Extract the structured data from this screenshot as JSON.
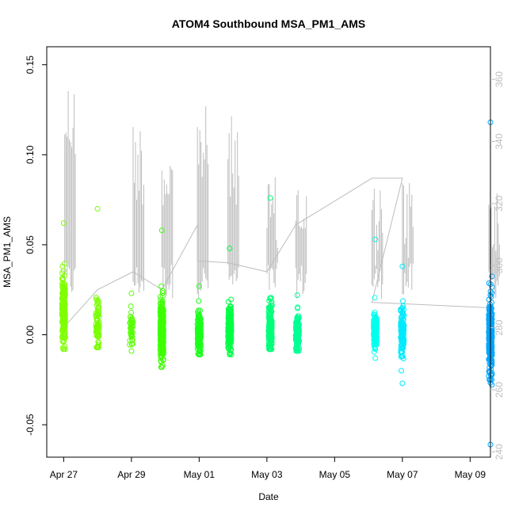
{
  "chart_data": {
    "type": "scatter",
    "title": "ATOM4 Southbound MSA_PM1_AMS",
    "xlabel": "Date",
    "ylabel": "MSA_PM1_AMS",
    "x_unit": "days since Apr 27",
    "xlim": [
      -0.5,
      12.6
    ],
    "ylim": [
      -0.068,
      0.16
    ],
    "x_ticks": [
      {
        "label": "Apr 27",
        "value": 0
      },
      {
        "label": "Apr 29",
        "value": 2
      },
      {
        "label": "May 01",
        "value": 4
      },
      {
        "label": "May 03",
        "value": 6
      },
      {
        "label": "May 05",
        "value": 8
      },
      {
        "label": "May 07",
        "value": 10
      },
      {
        "label": "May 09",
        "value": 12
      }
    ],
    "y_ticks": [
      {
        "label": "-0.05",
        "value": -0.05
      },
      {
        "label": "0.00",
        "value": 0.0
      },
      {
        "label": "0.05",
        "value": 0.05
      },
      {
        "label": "0.10",
        "value": 0.1
      },
      {
        "label": "0.15",
        "value": 0.15
      }
    ],
    "secondary_y": {
      "ylim": [
        238.3,
        370.5
      ],
      "ticks": [
        {
          "label": "240",
          "value": 240
        },
        {
          "label": "260",
          "value": 260
        },
        {
          "label": "280",
          "value": 280
        },
        {
          "label": "300",
          "value": 300
        },
        {
          "label": "320",
          "value": 320
        },
        {
          "label": "340",
          "value": 340
        },
        {
          "label": "360",
          "value": 360
        }
      ]
    },
    "colors": {
      "altitude_line": "#bdbdbd",
      "axis": "#000000",
      "secondary_axis": "#bdbdbd"
    },
    "flights": [
      {
        "x": 0.0,
        "color": "#7fff00",
        "center": 0.012,
        "spread": 0.011,
        "count": 170,
        "min": -0.008,
        "max": 0.062
      },
      {
        "x": 1.0,
        "color": "#77ff00",
        "center": 0.005,
        "spread": 0.007,
        "count": 70,
        "min": -0.007,
        "max": 0.07
      },
      {
        "x": 2.0,
        "color": "#55ff00",
        "center": 0.003,
        "spread": 0.004,
        "count": 45,
        "min": -0.009,
        "max": 0.023
      },
      {
        "x": 2.9,
        "color": "#3cff00",
        "center": 0.003,
        "spread": 0.008,
        "count": 240,
        "min": -0.018,
        "max": 0.058
      },
      {
        "x": 4.0,
        "color": "#1aff1a",
        "center": 0.002,
        "spread": 0.006,
        "count": 150,
        "min": -0.011,
        "max": 0.027
      },
      {
        "x": 4.9,
        "color": "#00ff44",
        "center": 0.003,
        "spread": 0.006,
        "count": 190,
        "min": -0.011,
        "max": 0.048
      },
      {
        "x": 6.1,
        "color": "#00ff7a",
        "center": 0.004,
        "spread": 0.007,
        "count": 160,
        "min": -0.008,
        "max": 0.076
      },
      {
        "x": 6.9,
        "color": "#00ff95",
        "center": 0.001,
        "spread": 0.006,
        "count": 120,
        "min": -0.009,
        "max": 0.022
      },
      {
        "x": 9.2,
        "color": "#00ffee",
        "center": 0.003,
        "spread": 0.005,
        "count": 110,
        "min": -0.013,
        "max": 0.053
      },
      {
        "x": 10.0,
        "color": "#00eaff",
        "center": 0.002,
        "spread": 0.007,
        "count": 130,
        "min": -0.027,
        "max": 0.038
      },
      {
        "x": 12.6,
        "color": "#00a5ff",
        "center": -0.001,
        "spread": 0.01,
        "count": 320,
        "min": -0.061,
        "max": 0.118
      }
    ],
    "altitude_peaks": [
      {
        "x": 0.03,
        "max": 0.144
      },
      {
        "x": 2.05,
        "max": 0.121
      },
      {
        "x": 2.9,
        "max": 0.113
      },
      {
        "x": 3.95,
        "max": 0.128
      },
      {
        "x": 4.85,
        "max": 0.122
      },
      {
        "x": 6.0,
        "max": 0.088
      },
      {
        "x": 6.85,
        "max": 0.093
      },
      {
        "x": 9.1,
        "max": 0.087
      },
      {
        "x": 10.0,
        "max": 0.089
      },
      {
        "x": 12.55,
        "max": 0.085
      }
    ]
  }
}
